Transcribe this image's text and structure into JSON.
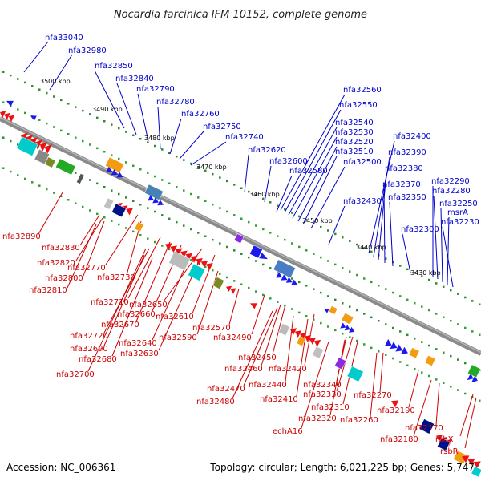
{
  "title": "Nocardia farcinica IFM 10152, complete genome",
  "accession": "Accession: NC_006361",
  "topology": "Topology: circular; Length: 6,021,225 bp; Genes: 5,747",
  "colors": {
    "background": "#ffffff",
    "backbone": "#808080",
    "forward_label": "#0000cc",
    "reverse_label": "#cc0000",
    "tick": "#228b22"
  },
  "ticks": [
    "3500 kbp",
    "3490 kbp",
    "3480 kbp",
    "3470 kbp",
    "3460 kbp",
    "3450 kbp",
    "3440 kbp",
    "3430 kbp"
  ],
  "forward_labels": [
    "nfa33040",
    "nfa32980",
    "nfa32850",
    "nfa32840",
    "nfa32790",
    "nfa32780",
    "nfa32760",
    "nfa32750",
    "nfa32740",
    "nfa32620",
    "nfa32600",
    "nfa32580",
    "nfa32560",
    "nfa32550",
    "nfa32540",
    "nfa32530",
    "nfa32520",
    "nfa32510",
    "nfa32500",
    "nfa32430",
    "nfa32400",
    "nfa32390",
    "nfa32380",
    "nfa32370",
    "nfa32350",
    "nfa32300",
    "nfa32290",
    "nfa32280",
    "nfa32250",
    "msrA",
    "nfa32230"
  ],
  "reverse_labels": [
    "nfa32890",
    "nfa32830",
    "nfa32820",
    "nfa32770",
    "nfa32800",
    "nfa32730",
    "nfa32810",
    "nfa32710",
    "nfa32650",
    "nfa32660",
    "nfa32670",
    "nfa32610",
    "nfa32720",
    "nfa32640",
    "nfa32690",
    "nfa32630",
    "nfa32680",
    "nfa32700",
    "nfa32590",
    "nfa32570",
    "nfa32490",
    "nfa32450",
    "nfa32460",
    "nfa32420",
    "nfa32440",
    "nfa32470",
    "nfa32410",
    "nfa32480",
    "nfa32340",
    "nfa32330",
    "nfa32310",
    "nfa32320",
    "echA16",
    "nfa32270",
    "nfa32260",
    "nfa32190",
    "nfa32170",
    "nfa32180",
    "rsbX",
    "rsbR"
  ]
}
